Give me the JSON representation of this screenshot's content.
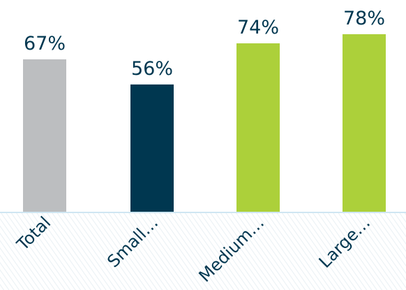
{
  "chart_data": {
    "type": "bar",
    "categories": [
      "Total",
      "Small…",
      "Medium…",
      "Large…"
    ],
    "values": [
      67,
      56,
      74,
      78
    ],
    "data_labels": [
      "67%",
      "56%",
      "74%",
      "78%"
    ],
    "colors": [
      "#bcbec0",
      "#003750",
      "#acd03a",
      "#acd03a"
    ],
    "label_color": "#003750",
    "baseline_color": "#cfe6f2",
    "title": "",
    "xlabel": "",
    "ylabel": "",
    "ylim": [
      0,
      100
    ],
    "grid": false,
    "legend": "none"
  }
}
